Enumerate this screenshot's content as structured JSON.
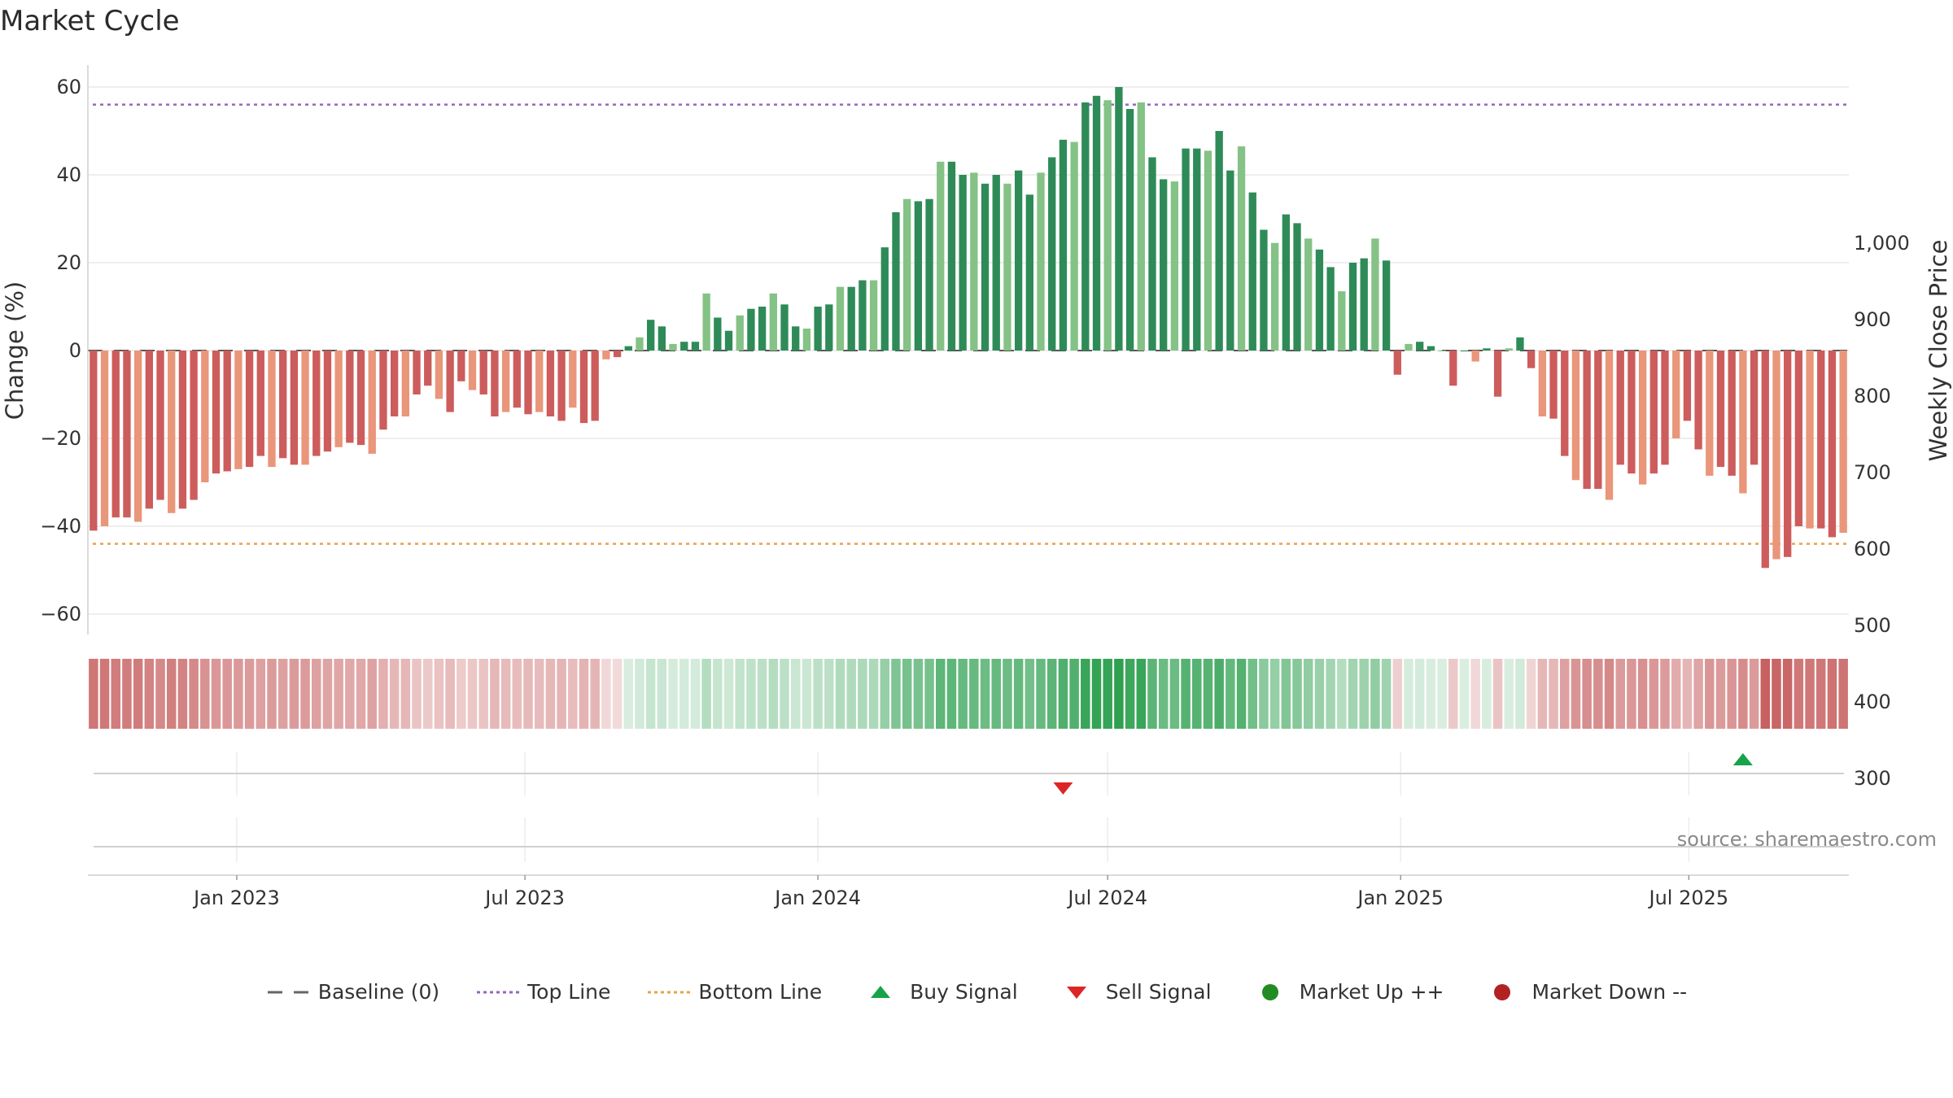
{
  "title": "Market Cycle",
  "source_text": "source: sharemaestro.com",
  "colors": {
    "pos_dark": "#2e8b57",
    "pos_light": "#85c285",
    "neg_dark": "#cd5c5c",
    "neg_light": "#e9967a",
    "top_line": "#9467bd",
    "bottom_line": "#e8a24a",
    "buy": "#16a34a",
    "sell": "#dc2626",
    "market_up": "#228b22",
    "market_down": "#b22222"
  },
  "legend": [
    {
      "key": "baseline",
      "label": "Baseline (0)",
      "icon": "dash-line-icon"
    },
    {
      "key": "top",
      "label": "Top Line",
      "icon": "dotted-purple-line-icon"
    },
    {
      "key": "bottom",
      "label": "Bottom Line",
      "icon": "dotted-orange-line-icon"
    },
    {
      "key": "buy",
      "label": "Buy Signal",
      "icon": "triangle-up-green-icon"
    },
    {
      "key": "sell",
      "label": "Sell Signal",
      "icon": "triangle-down-red-icon"
    },
    {
      "key": "up",
      "label": "Market Up ++",
      "icon": "circle-green-icon"
    },
    {
      "key": "down",
      "label": "Market Down --",
      "icon": "circle-red-icon"
    }
  ],
  "chart_data": {
    "type": "bar",
    "x_start": "2022-10-03",
    "x_interval": "weekly",
    "ylabel": "Change (%)",
    "y2label": "Weekly Close Price",
    "ylim": [
      -65,
      65
    ],
    "y2lim": [
      250,
      1010
    ],
    "y_ticks": [
      60,
      40,
      20,
      0,
      -20,
      -40,
      -60
    ],
    "y_tick_labels": [
      "60",
      "40",
      "20",
      "0",
      "−20",
      "−40",
      "−60"
    ],
    "y2_ticks": [
      1000,
      900,
      800,
      700,
      600,
      500,
      400,
      300
    ],
    "y2_tick_labels": [
      "1,000",
      "900",
      "800",
      "700",
      "600",
      "500",
      "400",
      "300"
    ],
    "x_ticks": [
      "2023-01-01",
      "2023-07-01",
      "2024-01-01",
      "2024-07-01",
      "2025-01-01",
      "2025-07-01"
    ],
    "x_tick_labels": [
      "Jan 2023",
      "Jul 2023",
      "Jan 2024",
      "Jul 2024",
      "Jan 2025",
      "Jul 2025"
    ],
    "top_line": 56,
    "bottom_line": -44,
    "baseline": 0,
    "grid": true,
    "legend_position": "bottom",
    "values": [
      -41,
      -40,
      -38,
      -38,
      -39,
      -36,
      -34,
      -37,
      -36,
      -34,
      -30,
      -28,
      -27.5,
      -27,
      -26.5,
      -24,
      -26.5,
      -24.5,
      -26,
      -26,
      -24,
      -23,
      -22,
      -21,
      -21.5,
      -23.5,
      -18,
      -15,
      -15,
      -10,
      -8,
      -11,
      -14,
      -7,
      -9,
      -10,
      -15,
      -14,
      -13,
      -14.5,
      -14,
      -15,
      -16,
      -13,
      -16.5,
      -16,
      -2,
      -1.5,
      1,
      3,
      7,
      5.5,
      1.5,
      2,
      2,
      13,
      7.5,
      4.5,
      8,
      9.5,
      10,
      13,
      10.5,
      5.5,
      5,
      10,
      10.5,
      14.5,
      14.5,
      16,
      16,
      23.5,
      31.5,
      34.5,
      34,
      34.5,
      43,
      43,
      40,
      40.5,
      38,
      40,
      38,
      41,
      35.5,
      40.5,
      44,
      48,
      47.5,
      56.5,
      58,
      57,
      60,
      55,
      56.5,
      44,
      39,
      38.5,
      46,
      46,
      45.5,
      50,
      41,
      46.5,
      36,
      27.5,
      24.5,
      31,
      29,
      25.5,
      23,
      19,
      13.5,
      20,
      21,
      25.5,
      20.5,
      -5.5,
      1.5,
      2,
      1,
      0,
      -8,
      0,
      -2.5,
      0.5,
      -10.5,
      0.5,
      3,
      -4,
      -15,
      -15.5,
      -24,
      -29.5,
      -31.5,
      -31.5,
      -34,
      -26,
      -28,
      -30.5,
      -28,
      -26,
      -20,
      -16,
      -22.5,
      -28.5,
      -26.5,
      -28.5,
      -32.5,
      -26,
      -49.5,
      -47.5,
      -47,
      -40,
      -40.5,
      -40.5,
      -42.5,
      -41.5
    ],
    "buy_signals": [
      {
        "date": "2025-08-04",
        "label": "Buy Signal"
      }
    ],
    "sell_signals": [
      {
        "date": "2024-06-03",
        "label": "Sell Signal"
      }
    ]
  }
}
